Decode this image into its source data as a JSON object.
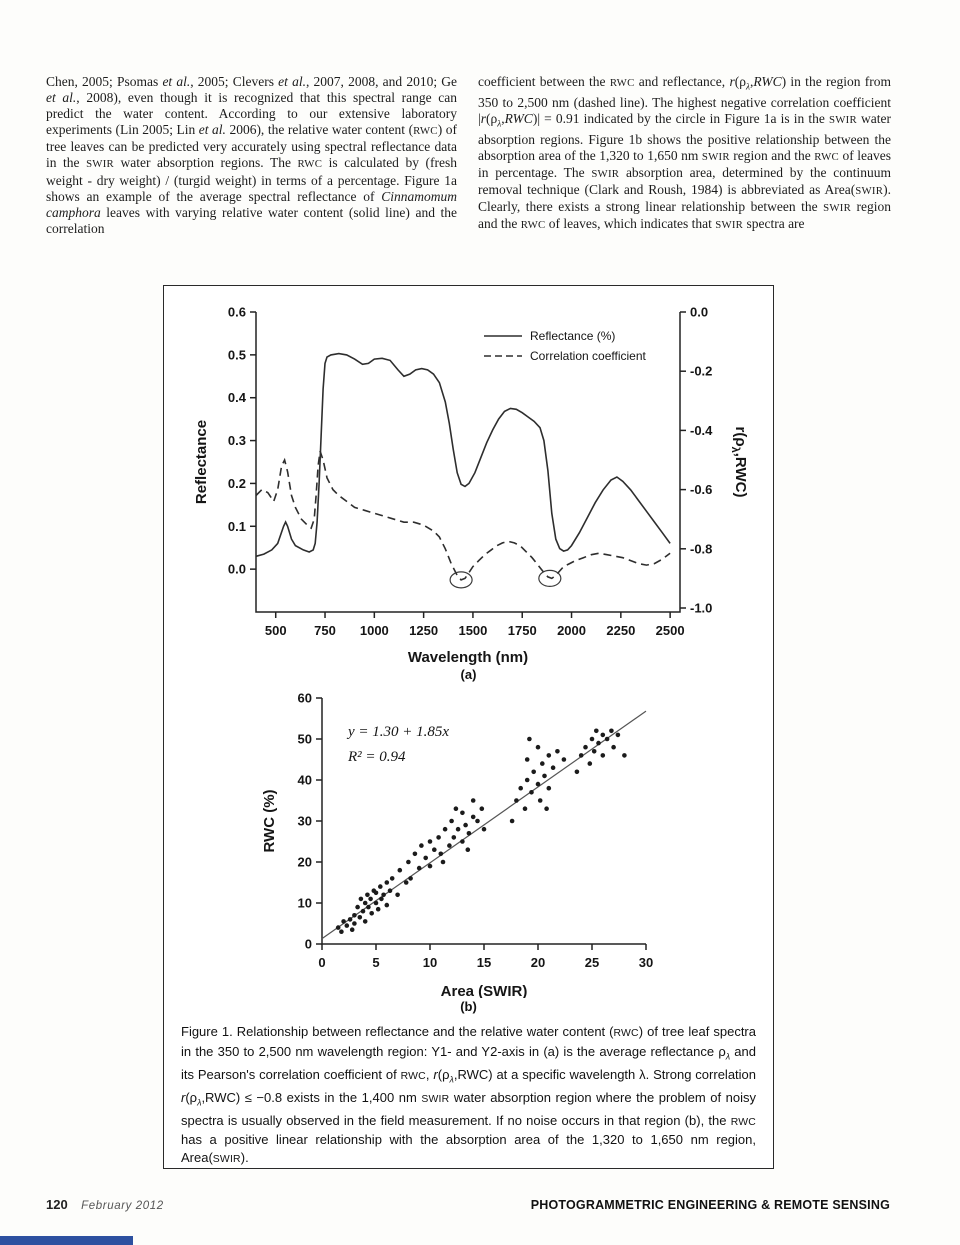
{
  "page": {
    "columns": {
      "left_segments": [
        {
          "t": "Chen, 2005; Psomas "
        },
        {
          "t": "et al.",
          "s": "i"
        },
        {
          "t": ", 2005; Clevers "
        },
        {
          "t": "et al.",
          "s": "i"
        },
        {
          "t": ", 2007, 2008, and 2010; Ge "
        },
        {
          "t": "et al.",
          "s": "i"
        },
        {
          "t": ", 2008), even though it is recognized that this spectral range can predict the water content. According to our extensive laboratory experiments (Lin 2005; Lin "
        },
        {
          "t": "et al.",
          "s": "i"
        },
        {
          "t": " 2006), the relative water content ("
        },
        {
          "t": "RWC",
          "s": "sc"
        },
        {
          "t": ") of tree leaves can be predicted very accurately using spectral reflectance data in the "
        },
        {
          "t": "SWIR",
          "s": "sc"
        },
        {
          "t": " water absorption regions. The "
        },
        {
          "t": "RWC",
          "s": "sc"
        },
        {
          "t": " is calculated by (fresh weight - dry weight) / (turgid weight) in terms of a percentage. Figure 1a shows an example of the average spectral reflectance of "
        },
        {
          "t": "Cinnamomum camphora",
          "s": "i"
        },
        {
          "t": " leaves with varying relative water content (solid line) and the correlation"
        }
      ],
      "right_segments": [
        {
          "t": "coefficient between the "
        },
        {
          "t": "RWC",
          "s": "sc"
        },
        {
          "t": " and reflectance, "
        },
        {
          "t": "r",
          "s": "i"
        },
        {
          "t": "(ρ"
        },
        {
          "t": "λ",
          "s": "sub"
        },
        {
          "t": ","
        },
        {
          "t": "RWC",
          "s": "i"
        },
        {
          "t": ") in the region from 350 to 2,500 nm (dashed line). The highest negative correlation coefficient |"
        },
        {
          "t": "r",
          "s": "i"
        },
        {
          "t": "(ρ"
        },
        {
          "t": "λ",
          "s": "sub"
        },
        {
          "t": ","
        },
        {
          "t": "RWC",
          "s": "i"
        },
        {
          "t": ")| = 0.91 indicated by the circle in Figure 1a is in the "
        },
        {
          "t": "SWIR",
          "s": "sc"
        },
        {
          "t": " water absorption regions. Figure 1b shows the positive relationship between the absorption area of the 1,320 to 1,650 nm "
        },
        {
          "t": "SWIR",
          "s": "sc"
        },
        {
          "t": " region and the "
        },
        {
          "t": "RWC",
          "s": "sc"
        },
        {
          "t": " of leaves in percentage. The "
        },
        {
          "t": "SWIR",
          "s": "sc"
        },
        {
          "t": " absorption area, determined by the continuum removal technique (Clark and Roush, 1984) is abbreviated as Area("
        },
        {
          "t": "SWIR",
          "s": "sc"
        },
        {
          "t": "). Clearly, there exists a strong linear relationship between the "
        },
        {
          "t": "SWIR",
          "s": "sc"
        },
        {
          "t": " region and the "
        },
        {
          "t": "RWC",
          "s": "sc"
        },
        {
          "t": " of leaves, which indicates that "
        },
        {
          "t": "SWIR",
          "s": "sc"
        },
        {
          "t": " spectra are"
        }
      ]
    },
    "footer": {
      "page_number": "120",
      "issue": "February 2012",
      "journal": "PHOTOGRAMMETRIC ENGINEERING & REMOTE SENSING"
    }
  },
  "figure": {
    "label_a": "(a)",
    "label_b": "(b)",
    "caption_segments": [
      {
        "t": "Figure 1. Relationship between reflectance and the relative water content ("
      },
      {
        "t": "RWC",
        "s": "sc"
      },
      {
        "t": ") of tree leaf spectra in the 350 to 2,500 nm wavelength region: Y1- and Y2-axis in (a) is the average reflectance ρ"
      },
      {
        "t": "λ",
        "s": "sub"
      },
      {
        "t": " and its Pearson's correlation coefficient of "
      },
      {
        "t": "RWC",
        "s": "sc"
      },
      {
        "t": ", "
      },
      {
        "t": "r",
        "s": "i"
      },
      {
        "t": "(ρ"
      },
      {
        "t": "λ",
        "s": "sub"
      },
      {
        "t": ",RWC) at a specific wavelength λ. Strong correlation "
      },
      {
        "t": "r",
        "s": "i"
      },
      {
        "t": "(ρ"
      },
      {
        "t": "λ",
        "s": "sub"
      },
      {
        "t": ",RWC) ≤ −0.8 exists in the 1,400 nm "
      },
      {
        "t": "SWIR",
        "s": "sc"
      },
      {
        "t": " water absorption region where the problem of noisy spectra is usually observed in the field measurement. If no noise occurs in that region (b), the "
      },
      {
        "t": "RWC",
        "s": "sc"
      },
      {
        "t": " has a positive linear relationship with the absorption area of the 1,320 to 1,650 nm region, Area("
      },
      {
        "t": "SWIR",
        "s": "sc"
      },
      {
        "t": ")."
      }
    ]
  },
  "chart_data": [
    {
      "type": "line",
      "xlabel": "Wavelength (nm)",
      "ylabel_left": "Reflectance",
      "ylabel_right_parts": [
        "r(ρ",
        "λ",
        ",RWC)"
      ],
      "xlim": [
        400,
        2550
      ],
      "y1lim": [
        -0.1,
        0.6
      ],
      "y2lim": [
        -1.0135,
        0
      ],
      "x_ticks": [
        500,
        750,
        1000,
        1250,
        1500,
        1750,
        2000,
        2250,
        2500
      ],
      "y1_ticks": [
        0.0,
        0.1,
        0.2,
        0.3,
        0.4,
        0.5,
        0.6
      ],
      "y2_ticks": [
        0.0,
        -0.2,
        -0.4,
        -0.6,
        -0.8,
        -1.0
      ],
      "legend": [
        {
          "label": "Reflectance (%)",
          "style": "solid"
        },
        {
          "label": "Correlation coefficient",
          "style": "dashed"
        }
      ],
      "series": [
        {
          "name": "reflectance-line",
          "axis": "y1",
          "style": "solid",
          "x": [
            400,
            440,
            480,
            510,
            540,
            550,
            560,
            580,
            600,
            640,
            670,
            690,
            700,
            710,
            720,
            730,
            740,
            750,
            760,
            780,
            820,
            860,
            900,
            940,
            970,
            1000,
            1040,
            1080,
            1120,
            1150,
            1180,
            1210,
            1240,
            1270,
            1300,
            1330,
            1360,
            1380,
            1400,
            1420,
            1440,
            1460,
            1480,
            1510,
            1540,
            1570,
            1600,
            1630,
            1660,
            1690,
            1720,
            1750,
            1780,
            1810,
            1840,
            1860,
            1880,
            1900,
            1920,
            1940,
            1960,
            1980,
            2000,
            2040,
            2080,
            2120,
            2160,
            2200,
            2230,
            2260,
            2300,
            2340,
            2380,
            2420,
            2460,
            2500
          ],
          "y": [
            0.03,
            0.035,
            0.045,
            0.06,
            0.1,
            0.11,
            0.1,
            0.07,
            0.055,
            0.045,
            0.04,
            0.045,
            0.06,
            0.11,
            0.2,
            0.31,
            0.42,
            0.48,
            0.495,
            0.5,
            0.503,
            0.5,
            0.49,
            0.478,
            0.48,
            0.49,
            0.492,
            0.487,
            0.465,
            0.45,
            0.455,
            0.465,
            0.468,
            0.465,
            0.455,
            0.435,
            0.39,
            0.34,
            0.28,
            0.225,
            0.198,
            0.193,
            0.2,
            0.225,
            0.26,
            0.295,
            0.325,
            0.35,
            0.368,
            0.375,
            0.373,
            0.365,
            0.355,
            0.345,
            0.33,
            0.3,
            0.23,
            0.13,
            0.07,
            0.048,
            0.042,
            0.045,
            0.055,
            0.085,
            0.12,
            0.155,
            0.185,
            0.208,
            0.215,
            0.205,
            0.185,
            0.16,
            0.135,
            0.11,
            0.085,
            0.06
          ]
        },
        {
          "name": "correlation-line",
          "axis": "y2",
          "style": "dashed",
          "x": [
            400,
            430,
            460,
            490,
            510,
            530,
            545,
            560,
            580,
            600,
            630,
            660,
            680,
            695,
            705,
            715,
            725,
            740,
            760,
            790,
            820,
            860,
            900,
            950,
            1000,
            1050,
            1100,
            1150,
            1200,
            1250,
            1300,
            1330,
            1360,
            1390,
            1420,
            1440,
            1460,
            1480,
            1500,
            1530,
            1560,
            1590,
            1620,
            1650,
            1680,
            1710,
            1740,
            1770,
            1800,
            1830,
            1860,
            1880,
            1900,
            1920,
            1940,
            1960,
            1990,
            2020,
            2060,
            2100,
            2140,
            2180,
            2220,
            2260,
            2300,
            2340,
            2380,
            2420,
            2460,
            2500
          ],
          "y": [
            -0.62,
            -0.6,
            -0.61,
            -0.64,
            -0.6,
            -0.52,
            -0.5,
            -0.54,
            -0.62,
            -0.66,
            -0.7,
            -0.72,
            -0.73,
            -0.7,
            -0.62,
            -0.52,
            -0.47,
            -0.5,
            -0.56,
            -0.6,
            -0.62,
            -0.64,
            -0.66,
            -0.67,
            -0.68,
            -0.69,
            -0.7,
            -0.71,
            -0.71,
            -0.72,
            -0.74,
            -0.76,
            -0.8,
            -0.85,
            -0.89,
            -0.905,
            -0.9,
            -0.88,
            -0.86,
            -0.84,
            -0.82,
            -0.805,
            -0.79,
            -0.78,
            -0.775,
            -0.78,
            -0.79,
            -0.81,
            -0.83,
            -0.855,
            -0.88,
            -0.895,
            -0.9,
            -0.89,
            -0.875,
            -0.86,
            -0.85,
            -0.84,
            -0.83,
            -0.82,
            -0.815,
            -0.82,
            -0.825,
            -0.83,
            -0.84,
            -0.85,
            -0.855,
            -0.85,
            -0.835,
            -0.815
          ]
        }
      ],
      "annotations": [
        {
          "type": "circle",
          "x": 1440,
          "y": -0.905
        },
        {
          "type": "circle",
          "x": 1890,
          "y": -0.9
        }
      ]
    },
    {
      "type": "scatter",
      "xlabel": "Area (SWIR)",
      "ylabel": "RWC (%)",
      "xlim": [
        0,
        30
      ],
      "ylim": [
        0,
        60
      ],
      "x_ticks": [
        0,
        5,
        10,
        15,
        20,
        25,
        30
      ],
      "y_ticks": [
        0,
        10,
        20,
        30,
        40,
        50,
        60
      ],
      "equation": "y = 1.30 + 1.85x",
      "r_squared": "R² = 0.94",
      "fit": {
        "intercept": 1.3,
        "slope": 1.85
      },
      "points": [
        [
          1.5,
          4
        ],
        [
          1.8,
          3
        ],
        [
          2,
          5.5
        ],
        [
          2.3,
          4.5
        ],
        [
          2.6,
          6
        ],
        [
          2.8,
          3.5
        ],
        [
          3,
          7
        ],
        [
          3,
          5
        ],
        [
          3.3,
          9
        ],
        [
          3.5,
          6.5
        ],
        [
          3.6,
          11
        ],
        [
          3.8,
          8
        ],
        [
          4,
          10
        ],
        [
          4,
          5.5
        ],
        [
          4.2,
          12
        ],
        [
          4.3,
          9
        ],
        [
          4.5,
          11
        ],
        [
          4.6,
          7.5
        ],
        [
          4.8,
          13
        ],
        [
          5,
          10
        ],
        [
          5,
          12.5
        ],
        [
          5.2,
          8.5
        ],
        [
          5.4,
          14
        ],
        [
          5.5,
          11
        ],
        [
          5.7,
          12
        ],
        [
          6,
          9.5
        ],
        [
          6,
          15
        ],
        [
          6.3,
          13
        ],
        [
          6.5,
          16
        ],
        [
          7,
          12
        ],
        [
          7.2,
          18
        ],
        [
          7.8,
          15
        ],
        [
          8,
          20
        ],
        [
          8.2,
          16
        ],
        [
          8.6,
          22
        ],
        [
          9,
          18.5
        ],
        [
          9.2,
          24
        ],
        [
          9.6,
          21
        ],
        [
          10,
          19
        ],
        [
          10,
          25
        ],
        [
          10.4,
          23
        ],
        [
          10.8,
          26
        ],
        [
          11,
          22
        ],
        [
          11.2,
          20
        ],
        [
          11.4,
          28
        ],
        [
          11.8,
          24
        ],
        [
          12,
          30
        ],
        [
          12.2,
          26
        ],
        [
          12.4,
          33
        ],
        [
          12.6,
          28
        ],
        [
          13,
          25
        ],
        [
          13,
          32
        ],
        [
          13.3,
          29
        ],
        [
          13.5,
          23
        ],
        [
          13.6,
          27
        ],
        [
          14,
          31
        ],
        [
          14,
          35
        ],
        [
          14.4,
          30
        ],
        [
          14.8,
          33
        ],
        [
          15,
          28
        ],
        [
          17.6,
          30
        ],
        [
          18,
          35
        ],
        [
          18.4,
          38
        ],
        [
          18.8,
          33
        ],
        [
          19,
          40
        ],
        [
          19,
          45
        ],
        [
          19.2,
          50
        ],
        [
          19.4,
          37
        ],
        [
          19.6,
          42
        ],
        [
          20,
          39
        ],
        [
          20,
          48
        ],
        [
          20.2,
          35
        ],
        [
          20.4,
          44
        ],
        [
          20.6,
          41
        ],
        [
          20.8,
          33
        ],
        [
          21,
          46
        ],
        [
          21,
          38
        ],
        [
          21.4,
          43
        ],
        [
          21.8,
          47
        ],
        [
          22.4,
          45
        ],
        [
          23.6,
          42
        ],
        [
          24,
          46
        ],
        [
          24.4,
          48
        ],
        [
          24.8,
          44
        ],
        [
          25,
          50
        ],
        [
          25.2,
          47
        ],
        [
          25.4,
          52
        ],
        [
          25.6,
          49
        ],
        [
          26,
          51
        ],
        [
          26,
          46
        ],
        [
          26.4,
          50
        ],
        [
          26.8,
          52
        ],
        [
          27,
          48
        ],
        [
          27.4,
          51
        ],
        [
          28,
          46
        ]
      ]
    }
  ]
}
